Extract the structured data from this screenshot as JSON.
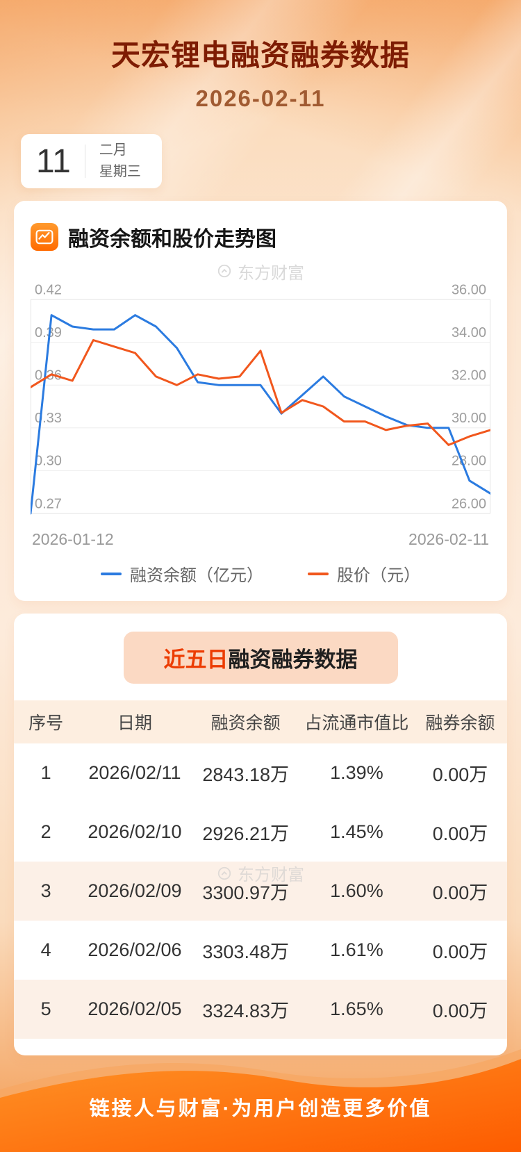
{
  "header": {
    "title": "天宏锂电融资融券数据",
    "date": "2026-02-11",
    "calendar": {
      "day": "11",
      "month": "二月",
      "weekday": "星期三"
    }
  },
  "chart": {
    "section_title": "融资余额和股价走势图",
    "watermark": "东方财富",
    "x_start": "2026-01-12",
    "x_end": "2026-02-11",
    "legend": [
      {
        "label": "融资余额（亿元）",
        "color": "#2b7be0"
      },
      {
        "label": "股价（元）",
        "color": "#f1571d"
      }
    ]
  },
  "chart_data": {
    "type": "line",
    "title": "融资余额和股价走势图",
    "x_labels_shown": [
      "2026-01-12",
      "2026-02-11"
    ],
    "grid": true,
    "legend_position": "bottom",
    "left_axis": {
      "name": "融资余额（亿元）",
      "min": 0.27,
      "max": 0.42,
      "ticks": [
        "0.42",
        "0.39",
        "0.36",
        "0.33",
        "0.30",
        "0.27"
      ]
    },
    "right_axis": {
      "name": "股价（元）",
      "min": 26,
      "max": 36,
      "ticks": [
        "36.00",
        "34.00",
        "32.00",
        "30.00",
        "28.00",
        "26.00"
      ]
    },
    "series": [
      {
        "name": "融资余额（亿元）",
        "axis": "left",
        "color": "#2b7be0",
        "values": [
          0.27,
          0.409,
          0.401,
          0.399,
          0.399,
          0.409,
          0.401,
          0.386,
          0.362,
          0.36,
          0.36,
          0.36,
          0.34,
          0.353,
          0.366,
          0.352,
          0.345,
          0.338,
          0.332,
          0.33,
          0.33,
          0.293,
          0.284
        ]
      },
      {
        "name": "股价（元）",
        "axis": "right",
        "color": "#f1571d",
        "values": [
          31.9,
          32.5,
          32.2,
          34.1,
          33.8,
          33.5,
          32.4,
          32.0,
          32.5,
          32.3,
          32.4,
          33.6,
          30.7,
          31.3,
          31.0,
          30.3,
          30.3,
          29.9,
          30.1,
          30.2,
          29.2,
          29.6,
          29.9
        ]
      }
    ]
  },
  "table": {
    "title_highlight": "近五日",
    "title_rest": "融资融券数据",
    "watermark": "东方财富",
    "columns": [
      "序号",
      "日期",
      "融资余额",
      "占流通市值比",
      "融券余额"
    ],
    "rows": [
      [
        "1",
        "2026/02/11",
        "2843.18万",
        "1.39%",
        "0.00万"
      ],
      [
        "2",
        "2026/02/10",
        "2926.21万",
        "1.45%",
        "0.00万"
      ],
      [
        "3",
        "2026/02/09",
        "3300.97万",
        "1.60%",
        "0.00万"
      ],
      [
        "4",
        "2026/02/06",
        "3303.48万",
        "1.61%",
        "0.00万"
      ],
      [
        "5",
        "2026/02/05",
        "3324.83万",
        "1.65%",
        "0.00万"
      ]
    ]
  },
  "footer": {
    "slogan": "链接人与财富·为用户创造更多价值"
  }
}
